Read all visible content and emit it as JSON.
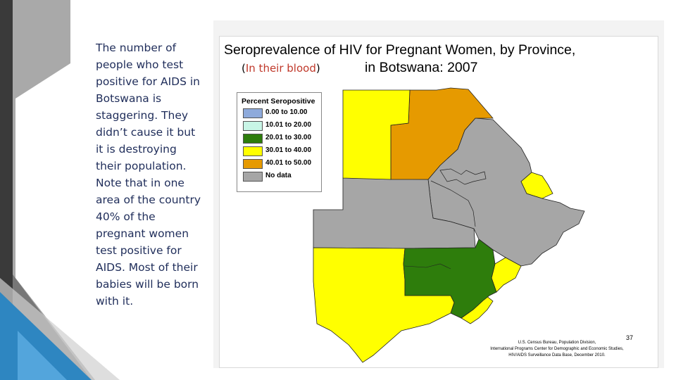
{
  "body_text": "The number of people who test positive for AIDS in Botswana is staggering. They didn’t cause it but it is destroying their population. Note that in one area of the country 40% of the pregnant women test positive for AIDS. Most of their babies will be born with it.",
  "map": {
    "title_line1": "Seroprevalence of HIV for Pregnant Women, by Province,",
    "title_line2": "in Botswana: 2007",
    "subtitle_open": "(",
    "subtitle_text": "In their blood",
    "subtitle_close": ")",
    "legend": {
      "title": "Percent Seropositive",
      "items": [
        {
          "label": "0.00   to 10.00",
          "color": "#8eaadb"
        },
        {
          "label": "10.01 to 20.00",
          "color": "#c8f5e6"
        },
        {
          "label": "20.01 to 30.00",
          "color": "#2e7d0c"
        },
        {
          "label": "30.01 to 40.00",
          "color": "#ffff00"
        },
        {
          "label": "40.01 to 50.00",
          "color": "#e69a00"
        },
        {
          "label": "No data",
          "color": "#a6a6a6"
        }
      ]
    },
    "colors": {
      "orange": "#e69a00",
      "yellow": "#ffff00",
      "green": "#2e7d0c",
      "gray": "#a6a6a6"
    },
    "page_number": "37",
    "credits": [
      "U.S. Census Bureau, Population Division,",
      "International Programs Center for Demographic and Economic Studies,",
      "HIV/AIDS Surveillance Data Base, December 2010."
    ]
  }
}
